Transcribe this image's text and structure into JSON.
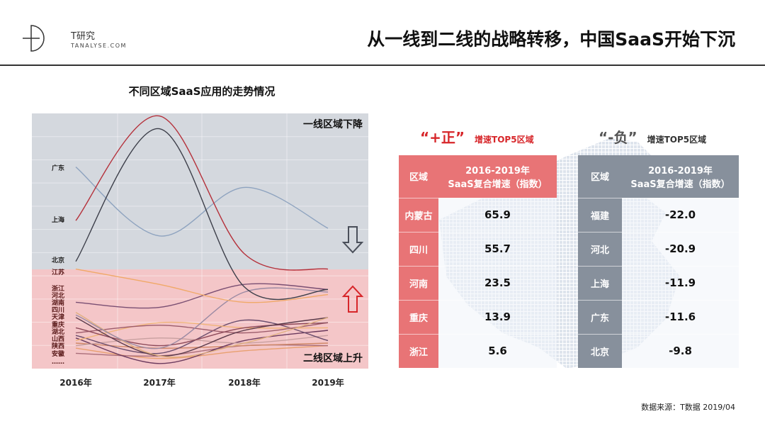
{
  "header": {
    "logo_cn": "T研究",
    "logo_en": "TANALYSE.COM",
    "title": "从一线到二线的战略转移，中国SaaS开始下沉"
  },
  "chart_data": {
    "type": "line",
    "title": "不同区域SaaS应用的走势情况",
    "categories": [
      "2016年",
      "2017年",
      "2018年",
      "2019年"
    ],
    "y_axis": "unlabeled relative index (no ticks printed)",
    "grid": true,
    "zones": [
      {
        "label": "一线区域下降",
        "color": "#d4d8de"
      },
      {
        "label": "二线区域上升",
        "color": "#f4c6c8"
      }
    ],
    "row_labels": [
      "广东",
      "上海",
      "北京",
      "江苏",
      "浙江",
      "河北",
      "湖南",
      "四川",
      "天津",
      "重庆",
      "湖北",
      "山西",
      "陕西",
      "安徽",
      "……"
    ],
    "series": [
      {
        "name": "上海",
        "color": "#b5313b",
        "values": [
          58,
          99,
          45,
          39
        ]
      },
      {
        "name": "北京",
        "color": "#3d3f4a",
        "values": [
          42,
          94,
          32,
          31
        ]
      },
      {
        "name": "广东",
        "color": "#8ea3bf",
        "values": [
          79,
          52,
          71,
          55
        ]
      },
      {
        "name": "江苏",
        "color": "#f0a968",
        "values": [
          39,
          33,
          26,
          29
        ]
      },
      {
        "color": "#7a4f73",
        "values": [
          26,
          24,
          33,
          31
        ]
      },
      {
        "color": "#9b8aa3",
        "values": [
          21,
          8,
          30,
          30
        ]
      },
      {
        "color": "#e0b080",
        "values": [
          22,
          5,
          10,
          20
        ]
      },
      {
        "color": "#5a3a4a",
        "values": [
          20,
          5,
          15,
          20
        ]
      },
      {
        "color": "#8e4a5a",
        "values": [
          16,
          9,
          16,
          18
        ]
      },
      {
        "color": "#9c5c6b",
        "values": [
          14,
          17,
          14,
          18
        ]
      },
      {
        "color": "#f0b47a",
        "values": [
          11,
          18,
          16,
          16
        ]
      },
      {
        "color": "#6a4c6c",
        "values": [
          13,
          6,
          19,
          11
        ]
      },
      {
        "color": "#c8a0a0",
        "values": [
          9,
          12,
          10,
          13
        ]
      },
      {
        "color": "#6b3a5e",
        "values": [
          12,
          2,
          11,
          15
        ]
      },
      {
        "color": "#d08868",
        "values": [
          10,
          8,
          9,
          10
        ]
      },
      {
        "color": "#aa6e7a",
        "values": [
          6,
          5,
          9,
          9
        ]
      },
      {
        "color": "#e8a070",
        "values": [
          8,
          4,
          7,
          9
        ]
      }
    ],
    "arrows": [
      {
        "direction": "down",
        "color": "#4a4f5a"
      },
      {
        "direction": "up",
        "color": "#d7262a"
      }
    ]
  },
  "positive": {
    "quote": "“+正”",
    "subtitle": "增速TOP5区域",
    "col1": "区域",
    "col2_l1": "2016-2019年",
    "col2_l2": "SaaS复合增速（指数）",
    "rows": [
      {
        "region": "内蒙古",
        "value": "65.9"
      },
      {
        "region": "四川",
        "value": "55.7"
      },
      {
        "region": "河南",
        "value": "23.5"
      },
      {
        "region": "重庆",
        "value": "13.9"
      },
      {
        "region": "浙江",
        "value": "5.6"
      }
    ]
  },
  "negative": {
    "quote": "“-负”",
    "subtitle": "增速TOP5区域",
    "col1": "区域",
    "col2_l1": "2016-2019年",
    "col2_l2": "SaaS复合增速（指数）",
    "rows": [
      {
        "region": "福建",
        "value": "-22.0"
      },
      {
        "region": "河北",
        "value": "-20.9"
      },
      {
        "region": "上海",
        "value": "-11.9"
      },
      {
        "region": "广东",
        "value": "-11.6"
      },
      {
        "region": "北京",
        "value": "-9.8"
      }
    ]
  },
  "source": "数据来源：T数据 2019/04"
}
